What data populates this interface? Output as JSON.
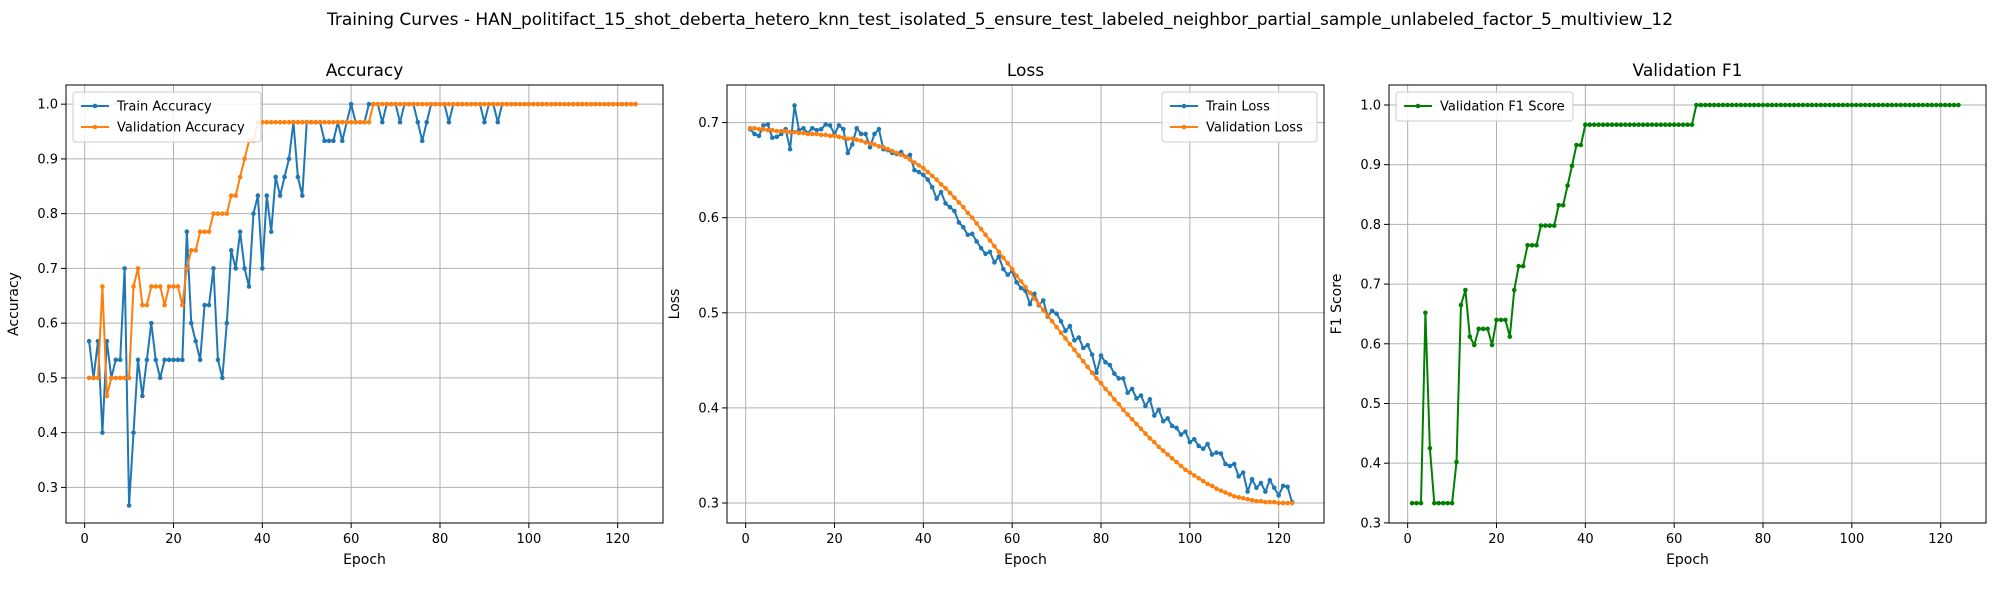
{
  "figure": {
    "title": "Training Curves - HAN_politifact_15_shot_deberta_hetero_knn_test_isolated_5_ensure_test_labeled_neighbor_partial_sample_unlabeled_factor_5_multiview_12"
  },
  "colors": {
    "blue": "#1f77b4",
    "orange": "#ff7f0e",
    "green": "#008000",
    "grid": "#b0b0b0"
  },
  "chart_data": [
    {
      "type": "line",
      "title": "Accuracy",
      "xlabel": "Epoch",
      "ylabel": "Accuracy",
      "xlim": [
        -4.2,
        130.2
      ],
      "ylim": [
        0.235,
        1.035
      ],
      "xticks": [
        0,
        20,
        40,
        60,
        80,
        100,
        120
      ],
      "yticks": [
        0.3,
        0.4,
        0.5,
        0.6,
        0.7,
        0.8,
        0.9,
        1.0
      ],
      "grid": true,
      "legend": "upper left",
      "series": [
        {
          "name": "Train Accuracy",
          "color": "#1f77b4",
          "x_start": 1,
          "values": [
            0.567,
            0.5,
            0.567,
            0.4,
            0.567,
            0.5,
            0.533,
            0.533,
            0.7,
            0.267,
            0.4,
            0.533,
            0.467,
            0.533,
            0.6,
            0.533,
            0.5,
            0.533,
            0.533,
            0.533,
            0.533,
            0.533,
            0.767,
            0.6,
            0.567,
            0.533,
            0.633,
            0.633,
            0.7,
            0.533,
            0.5,
            0.6,
            0.733,
            0.7,
            0.767,
            0.7,
            0.667,
            0.8,
            0.833,
            0.7,
            0.833,
            0.767,
            0.867,
            0.833,
            0.867,
            0.9,
            0.967,
            0.867,
            0.833,
            0.967,
            0.967,
            0.967,
            0.967,
            0.933,
            0.933,
            0.933,
            0.967,
            0.933,
            0.967,
            1.0,
            0.967,
            0.967,
            0.967,
            1.0,
            1.0,
            1.0,
            0.967,
            1.0,
            1.0,
            1.0,
            0.967,
            1.0,
            1.0,
            1.0,
            0.967,
            0.933,
            0.967,
            1.0,
            1.0,
            1.0,
            1.0,
            0.967,
            1.0,
            1.0,
            1.0,
            1.0,
            1.0,
            1.0,
            1.0,
            0.967,
            1.0,
            1.0,
            0.967,
            1.0,
            1.0,
            1.0,
            1.0,
            1.0,
            1.0,
            1.0,
            1.0,
            1.0,
            1.0,
            1.0,
            1.0,
            1.0,
            1.0,
            1.0,
            1.0,
            1.0,
            1.0,
            1.0,
            1.0,
            1.0,
            1.0,
            1.0,
            1.0,
            1.0,
            1.0,
            1.0,
            1.0,
            1.0,
            1.0,
            1.0
          ]
        },
        {
          "name": "Validation Accuracy",
          "color": "#ff7f0e",
          "x_start": 1,
          "values": [
            0.5,
            0.5,
            0.5,
            0.667,
            0.467,
            0.5,
            0.5,
            0.5,
            0.5,
            0.5,
            0.667,
            0.7,
            0.633,
            0.633,
            0.667,
            0.667,
            0.667,
            0.633,
            0.667,
            0.667,
            0.667,
            0.633,
            0.7,
            0.733,
            0.733,
            0.767,
            0.767,
            0.767,
            0.8,
            0.8,
            0.8,
            0.8,
            0.833,
            0.833,
            0.867,
            0.9,
            0.933,
            0.933,
            0.967,
            0.967,
            0.967,
            0.967,
            0.967,
            0.967,
            0.967,
            0.967,
            0.967,
            0.967,
            0.967,
            0.967,
            0.967,
            0.967,
            0.967,
            0.967,
            0.967,
            0.967,
            0.967,
            0.967,
            0.967,
            0.967,
            0.967,
            0.967,
            0.967,
            0.967,
            1.0,
            1.0,
            1.0,
            1.0,
            1.0,
            1.0,
            1.0,
            1.0,
            1.0,
            1.0,
            1.0,
            1.0,
            1.0,
            1.0,
            1.0,
            1.0,
            1.0,
            1.0,
            1.0,
            1.0,
            1.0,
            1.0,
            1.0,
            1.0,
            1.0,
            1.0,
            1.0,
            1.0,
            1.0,
            1.0,
            1.0,
            1.0,
            1.0,
            1.0,
            1.0,
            1.0,
            1.0,
            1.0,
            1.0,
            1.0,
            1.0,
            1.0,
            1.0,
            1.0,
            1.0,
            1.0,
            1.0,
            1.0,
            1.0,
            1.0,
            1.0,
            1.0,
            1.0,
            1.0,
            1.0,
            1.0,
            1.0,
            1.0,
            1.0,
            1.0
          ]
        }
      ]
    },
    {
      "type": "line",
      "title": "Loss",
      "xlabel": "Epoch",
      "ylabel": "Loss",
      "xlim": [
        -4.2,
        130.2
      ],
      "ylim": [
        0.279,
        0.7395
      ],
      "xticks": [
        0,
        20,
        40,
        60,
        80,
        100,
        120
      ],
      "yticks": [
        0.3,
        0.4,
        0.5,
        0.6,
        0.7
      ],
      "grid": true,
      "legend": "upper right",
      "series": [
        {
          "name": "Train Loss",
          "color": "#1f77b4",
          "x_start": 1,
          "values": [
            0.693,
            0.688,
            0.686,
            0.697,
            0.698,
            0.684,
            0.685,
            0.688,
            0.693,
            0.672,
            0.718,
            0.692,
            0.694,
            0.689,
            0.694,
            0.692,
            0.693,
            0.698,
            0.697,
            0.688,
            0.697,
            0.693,
            0.668,
            0.677,
            0.694,
            0.688,
            0.688,
            0.674,
            0.688,
            0.693,
            0.672,
            0.671,
            0.668,
            0.667,
            0.669,
            0.664,
            0.666,
            0.65,
            0.648,
            0.645,
            0.64,
            0.632,
            0.62,
            0.627,
            0.615,
            0.611,
            0.607,
            0.595,
            0.59,
            0.582,
            0.583,
            0.575,
            0.568,
            0.562,
            0.564,
            0.553,
            0.559,
            0.546,
            0.54,
            0.544,
            0.532,
            0.526,
            0.523,
            0.509,
            0.52,
            0.508,
            0.513,
            0.496,
            0.502,
            0.499,
            0.491,
            0.481,
            0.486,
            0.471,
            0.474,
            0.463,
            0.466,
            0.456,
            0.437,
            0.455,
            0.448,
            0.445,
            0.436,
            0.431,
            0.431,
            0.416,
            0.42,
            0.41,
            0.413,
            0.402,
            0.409,
            0.392,
            0.398,
            0.386,
            0.389,
            0.381,
            0.379,
            0.372,
            0.375,
            0.364,
            0.367,
            0.36,
            0.357,
            0.362,
            0.351,
            0.353,
            0.352,
            0.341,
            0.339,
            0.341,
            0.328,
            0.332,
            0.312,
            0.325,
            0.316,
            0.321,
            0.312,
            0.324,
            0.316,
            0.308,
            0.318,
            0.317,
            0.301
          ]
        },
        {
          "name": "Validation Loss",
          "color": "#ff7f0e",
          "x_start": 1,
          "values": [
            0.694,
            0.694,
            0.693,
            0.693,
            0.692,
            0.692,
            0.691,
            0.691,
            0.691,
            0.69,
            0.69,
            0.689,
            0.689,
            0.688,
            0.688,
            0.688,
            0.687,
            0.687,
            0.686,
            0.686,
            0.685,
            0.684,
            0.683,
            0.683,
            0.682,
            0.681,
            0.679,
            0.678,
            0.677,
            0.675,
            0.674,
            0.672,
            0.67,
            0.668,
            0.666,
            0.664,
            0.661,
            0.658,
            0.655,
            0.652,
            0.648,
            0.644,
            0.64,
            0.635,
            0.631,
            0.626,
            0.621,
            0.616,
            0.611,
            0.605,
            0.6,
            0.594,
            0.588,
            0.582,
            0.576,
            0.57,
            0.564,
            0.558,
            0.552,
            0.546,
            0.539,
            0.533,
            0.527,
            0.521,
            0.515,
            0.509,
            0.503,
            0.497,
            0.491,
            0.485,
            0.479,
            0.473,
            0.467,
            0.461,
            0.455,
            0.449,
            0.443,
            0.437,
            0.431,
            0.426,
            0.42,
            0.415,
            0.409,
            0.404,
            0.398,
            0.393,
            0.388,
            0.383,
            0.378,
            0.373,
            0.368,
            0.364,
            0.359,
            0.355,
            0.351,
            0.347,
            0.343,
            0.339,
            0.335,
            0.332,
            0.329,
            0.326,
            0.323,
            0.32,
            0.318,
            0.315,
            0.313,
            0.311,
            0.309,
            0.307,
            0.306,
            0.305,
            0.304,
            0.303,
            0.302,
            0.302,
            0.301,
            0.301,
            0.301,
            0.3,
            0.3,
            0.3,
            0.3
          ]
        }
      ]
    },
    {
      "type": "line",
      "title": "Validation F1",
      "xlabel": "Epoch",
      "ylabel": "F1 Score",
      "xlim": [
        -4.2,
        130.2
      ],
      "ylim": [
        0.2998,
        1.0335
      ],
      "xticks": [
        0,
        20,
        40,
        60,
        80,
        100,
        120
      ],
      "yticks": [
        0.3,
        0.4,
        0.5,
        0.6,
        0.7,
        0.8,
        0.9,
        1.0
      ],
      "grid": true,
      "legend": "upper left",
      "series": [
        {
          "name": "Validation F1 Score",
          "color": "#008000",
          "x_start": 1,
          "values": [
            0.333,
            0.333,
            0.333,
            0.652,
            0.425,
            0.333,
            0.333,
            0.333,
            0.333,
            0.333,
            0.402,
            0.665,
            0.69,
            0.612,
            0.598,
            0.625,
            0.625,
            0.625,
            0.598,
            0.64,
            0.64,
            0.64,
            0.612,
            0.69,
            0.73,
            0.73,
            0.765,
            0.765,
            0.765,
            0.798,
            0.798,
            0.798,
            0.798,
            0.832,
            0.832,
            0.865,
            0.898,
            0.933,
            0.933,
            0.967,
            0.967,
            0.967,
            0.967,
            0.967,
            0.967,
            0.967,
            0.967,
            0.967,
            0.967,
            0.967,
            0.967,
            0.967,
            0.967,
            0.967,
            0.967,
            0.967,
            0.967,
            0.967,
            0.967,
            0.967,
            0.967,
            0.967,
            0.967,
            0.967,
            1.0,
            1.0,
            1.0,
            1.0,
            1.0,
            1.0,
            1.0,
            1.0,
            1.0,
            1.0,
            1.0,
            1.0,
            1.0,
            1.0,
            1.0,
            1.0,
            1.0,
            1.0,
            1.0,
            1.0,
            1.0,
            1.0,
            1.0,
            1.0,
            1.0,
            1.0,
            1.0,
            1.0,
            1.0,
            1.0,
            1.0,
            1.0,
            1.0,
            1.0,
            1.0,
            1.0,
            1.0,
            1.0,
            1.0,
            1.0,
            1.0,
            1.0,
            1.0,
            1.0,
            1.0,
            1.0,
            1.0,
            1.0,
            1.0,
            1.0,
            1.0,
            1.0,
            1.0,
            1.0,
            1.0,
            1.0,
            1.0,
            1.0,
            1.0,
            1.0
          ]
        }
      ]
    }
  ]
}
